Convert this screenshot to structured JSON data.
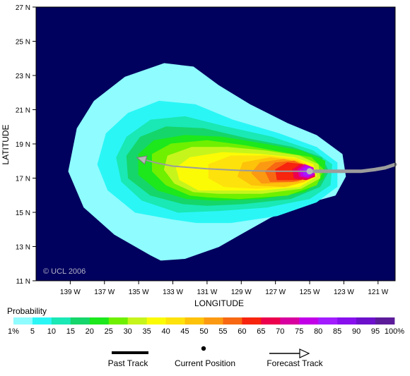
{
  "chart_data": {
    "type": "heatmap",
    "title": "",
    "xlabel": "LONGITUDE",
    "ylabel": "LATITUDE",
    "xlim": [
      -141,
      -120
    ],
    "ylim": [
      11,
      27
    ],
    "x_ticks": [
      -139,
      -137,
      -135,
      -133,
      -131,
      -129,
      -127,
      -125,
      -123,
      -121
    ],
    "x_tick_labels": [
      "139 W",
      "137 W",
      "135 W",
      "133 W",
      "131 W",
      "129 W",
      "127 W",
      "125 W",
      "123 W",
      "121 W"
    ],
    "y_ticks": [
      11,
      13,
      15,
      17,
      19,
      21,
      23,
      25,
      27
    ],
    "y_tick_labels": [
      "11 N",
      "13 N",
      "15 N",
      "17 N",
      "19 N",
      "21 N",
      "23 N",
      "25 N",
      "27 N"
    ],
    "background_color": "#00005e",
    "watermark": "© UCL 2006",
    "probability_contours": [
      {
        "level": 1,
        "color": "#8ffcff",
        "polygon": [
          [
            -134.3,
            12.5
          ],
          [
            -136.4,
            13.7
          ],
          [
            -138.2,
            15.3
          ],
          [
            -139.1,
            17.4
          ],
          [
            -138.6,
            19.9
          ],
          [
            -137.6,
            21.5
          ],
          [
            -135.8,
            22.9
          ],
          [
            -133.5,
            23.7
          ],
          [
            -131.8,
            23.5
          ],
          [
            -130.3,
            22.4
          ],
          [
            -128.5,
            21.3
          ],
          [
            -126.3,
            20.2
          ],
          [
            -124.6,
            19.5
          ],
          [
            -123.1,
            18.4
          ],
          [
            -122.9,
            17.1
          ],
          [
            -123.5,
            16.0
          ],
          [
            -125.3,
            15.5
          ],
          [
            -127.3,
            14.7
          ],
          [
            -128.9,
            13.8
          ],
          [
            -130.3,
            13.0
          ],
          [
            -132.3,
            12.3
          ],
          [
            -133.7,
            12.2
          ]
        ]
      },
      {
        "level": 5,
        "color": "#2bf6f6",
        "polygon": [
          [
            -133.0,
            14.6
          ],
          [
            -135.2,
            15.0
          ],
          [
            -136.8,
            16.3
          ],
          [
            -137.4,
            17.8
          ],
          [
            -136.9,
            19.6
          ],
          [
            -135.6,
            20.8
          ],
          [
            -133.8,
            21.5
          ],
          [
            -131.7,
            21.3
          ],
          [
            -129.5,
            20.4
          ],
          [
            -126.8,
            19.6
          ],
          [
            -124.6,
            18.8
          ],
          [
            -123.4,
            17.9
          ],
          [
            -123.4,
            16.5
          ],
          [
            -124.6,
            15.6
          ],
          [
            -126.9,
            14.8
          ],
          [
            -129.6,
            14.4
          ],
          [
            -131.6,
            14.4
          ]
        ]
      },
      {
        "level": 10,
        "color": "#1ae8b5",
        "polygon": [
          [
            -132.7,
            15.0
          ],
          [
            -134.8,
            15.7
          ],
          [
            -136.0,
            16.8
          ],
          [
            -136.3,
            18.2
          ],
          [
            -135.7,
            19.4
          ],
          [
            -134.3,
            20.4
          ],
          [
            -132.3,
            20.6
          ],
          [
            -129.9,
            20.0
          ],
          [
            -127.2,
            19.4
          ],
          [
            -124.8,
            18.6
          ],
          [
            -123.7,
            17.8
          ],
          [
            -123.8,
            16.6
          ],
          [
            -125.0,
            15.8
          ],
          [
            -127.5,
            15.3
          ],
          [
            -130.3,
            15.1
          ]
        ]
      },
      {
        "level": 15,
        "color": "#15d66a",
        "polygon": [
          [
            -132.4,
            15.5
          ],
          [
            -134.3,
            16.0
          ],
          [
            -135.6,
            17.0
          ],
          [
            -135.7,
            18.3
          ],
          [
            -134.9,
            19.4
          ],
          [
            -133.4,
            20.0
          ],
          [
            -131.2,
            19.9
          ],
          [
            -128.6,
            19.3
          ],
          [
            -126.0,
            18.8
          ],
          [
            -124.3,
            18.2
          ],
          [
            -123.9,
            17.4
          ],
          [
            -124.4,
            16.5
          ],
          [
            -126.1,
            15.8
          ],
          [
            -128.9,
            15.5
          ],
          [
            -131.0,
            15.4
          ]
        ]
      },
      {
        "level": 20,
        "color": "#1ce81c",
        "polygon": [
          [
            -132.2,
            15.8
          ],
          [
            -133.9,
            16.3
          ],
          [
            -135.0,
            17.2
          ],
          [
            -135.0,
            18.4
          ],
          [
            -134.1,
            19.2
          ],
          [
            -132.3,
            19.5
          ],
          [
            -130.1,
            19.4
          ],
          [
            -127.7,
            19.0
          ],
          [
            -125.5,
            18.6
          ],
          [
            -124.1,
            18.0
          ],
          [
            -124.2,
            17.0
          ],
          [
            -125.3,
            16.2
          ],
          [
            -127.8,
            15.8
          ],
          [
            -130.5,
            15.7
          ]
        ]
      },
      {
        "level": 25,
        "color": "#6ef000",
        "polygon": [
          [
            -132.0,
            16.0
          ],
          [
            -133.4,
            16.6
          ],
          [
            -134.2,
            17.4
          ],
          [
            -134.2,
            18.4
          ],
          [
            -133.1,
            19.0
          ],
          [
            -131.0,
            19.2
          ],
          [
            -128.8,
            18.9
          ],
          [
            -126.6,
            18.5
          ],
          [
            -124.9,
            18.2
          ],
          [
            -124.2,
            17.5
          ],
          [
            -124.6,
            16.6
          ],
          [
            -126.3,
            16.0
          ],
          [
            -129.1,
            15.8
          ],
          [
            -131.0,
            15.9
          ]
        ]
      },
      {
        "level": 30,
        "color": "#c6f51c",
        "polygon": [
          [
            -131.8,
            16.2
          ],
          [
            -132.9,
            16.7
          ],
          [
            -133.5,
            17.5
          ],
          [
            -133.3,
            18.3
          ],
          [
            -131.9,
            18.8
          ],
          [
            -129.8,
            18.8
          ],
          [
            -127.6,
            18.6
          ],
          [
            -125.6,
            18.3
          ],
          [
            -124.5,
            17.8
          ],
          [
            -124.4,
            17.0
          ],
          [
            -125.5,
            16.4
          ],
          [
            -127.8,
            16.1
          ],
          [
            -130.3,
            16.1
          ]
        ]
      },
      {
        "level": 35,
        "color": "#fbfb05",
        "polygon": [
          [
            -131.5,
            16.3
          ],
          [
            -132.6,
            16.9
          ],
          [
            -132.8,
            17.6
          ],
          [
            -132.0,
            18.2
          ],
          [
            -130.1,
            18.5
          ],
          [
            -127.9,
            18.4
          ],
          [
            -125.9,
            18.2
          ],
          [
            -124.8,
            17.8
          ],
          [
            -124.6,
            17.1
          ],
          [
            -125.6,
            16.5
          ],
          [
            -127.8,
            16.3
          ],
          [
            -130.0,
            16.3
          ]
        ]
      },
      {
        "level": 40,
        "color": "#fee20c",
        "polygon": [
          [
            -130.0,
            16.5
          ],
          [
            -130.9,
            17.0
          ],
          [
            -130.9,
            17.8
          ],
          [
            -129.6,
            18.3
          ],
          [
            -127.4,
            18.3
          ],
          [
            -125.7,
            18.1
          ],
          [
            -124.8,
            17.6
          ],
          [
            -125.0,
            16.9
          ],
          [
            -126.3,
            16.5
          ],
          [
            -128.1,
            16.4
          ]
        ]
      },
      {
        "level": 45,
        "color": "#fdc20a",
        "polygon": [
          [
            -128.4,
            16.6
          ],
          [
            -129.2,
            17.1
          ],
          [
            -128.9,
            17.9
          ],
          [
            -127.3,
            18.2
          ],
          [
            -125.7,
            18.0
          ],
          [
            -124.9,
            17.5
          ],
          [
            -125.3,
            16.8
          ],
          [
            -126.5,
            16.5
          ]
        ]
      },
      {
        "level": 50,
        "color": "#fb9a12",
        "polygon": [
          [
            -127.8,
            16.7
          ],
          [
            -128.4,
            17.3
          ],
          [
            -127.9,
            17.9
          ],
          [
            -126.5,
            18.1
          ],
          [
            -125.3,
            17.8
          ],
          [
            -125.0,
            17.2
          ],
          [
            -125.7,
            16.8
          ]
        ]
      },
      {
        "level": 55,
        "color": "#f86812",
        "polygon": [
          [
            -127.3,
            16.8
          ],
          [
            -127.6,
            17.4
          ],
          [
            -127.0,
            17.9
          ],
          [
            -125.9,
            18.0
          ],
          [
            -125.1,
            17.6
          ],
          [
            -125.2,
            17.0
          ],
          [
            -126.0,
            16.8
          ]
        ]
      },
      {
        "level": 60,
        "color": "#f7240e",
        "polygon": [
          [
            -126.9,
            16.9
          ],
          [
            -127.0,
            17.5
          ],
          [
            -126.3,
            17.9
          ],
          [
            -125.4,
            17.8
          ],
          [
            -125.0,
            17.3
          ],
          [
            -125.5,
            16.9
          ]
        ]
      },
      {
        "level": 65,
        "color": "#ec004d",
        "polygon": [
          [
            -125.9,
            17.0
          ],
          [
            -126.0,
            17.5
          ],
          [
            -125.5,
            17.8
          ],
          [
            -124.8,
            17.6
          ],
          [
            -124.7,
            17.1
          ],
          [
            -125.2,
            16.9
          ]
        ]
      },
      {
        "level": 70,
        "color": "#d8009e",
        "polygon": [
          [
            -125.6,
            17.1
          ],
          [
            -125.7,
            17.5
          ],
          [
            -125.3,
            17.8
          ],
          [
            -124.8,
            17.6
          ],
          [
            -124.7,
            17.2
          ],
          [
            -125.1,
            17.0
          ]
        ]
      },
      {
        "level": 75,
        "color": "#c200e8",
        "polygon": [
          [
            -125.5,
            17.15
          ],
          [
            -125.55,
            17.5
          ],
          [
            -125.2,
            17.75
          ],
          [
            -124.8,
            17.6
          ],
          [
            -124.75,
            17.25
          ],
          [
            -125.1,
            17.05
          ]
        ]
      },
      {
        "level": 80,
        "color": "#a21cff",
        "polygon": [
          [
            -125.35,
            17.2
          ],
          [
            -125.35,
            17.55
          ],
          [
            -125.05,
            17.65
          ],
          [
            -124.85,
            17.45
          ],
          [
            -124.85,
            17.25
          ],
          [
            -125.1,
            17.15
          ]
        ]
      }
    ],
    "past_track": [
      [
        -120.0,
        17.8
      ],
      [
        -120.6,
        17.6
      ],
      [
        -121.2,
        17.5
      ],
      [
        -122.0,
        17.4
      ],
      [
        -123.0,
        17.4
      ],
      [
        -124.0,
        17.4
      ],
      [
        -125.0,
        17.4
      ]
    ],
    "current_position": [
      -125.0,
      17.4
    ],
    "forecast_track": [
      [
        -125.0,
        17.4
      ],
      [
        -127.0,
        17.4
      ],
      [
        -129.0,
        17.45
      ],
      [
        -131.0,
        17.55
      ],
      [
        -133.0,
        17.7
      ],
      [
        -134.0,
        17.9
      ],
      [
        -135.1,
        18.2
      ]
    ],
    "legend": {
      "title": "Probability",
      "levels": [
        "1%",
        "5",
        "10",
        "15",
        "20",
        "25",
        "30",
        "35",
        "40",
        "45",
        "50",
        "55",
        "60",
        "65",
        "70",
        "75",
        "80",
        "85",
        "90",
        "95",
        "100%"
      ],
      "colors": [
        "#8ffcff",
        "#2bf6f6",
        "#1ae8b5",
        "#15d66a",
        "#1ce81c",
        "#6ef000",
        "#c6f51c",
        "#fbfb05",
        "#fee20c",
        "#fdc20a",
        "#fb9a12",
        "#f86812",
        "#f7240e",
        "#ec004d",
        "#d8009e",
        "#c200e8",
        "#a21cff",
        "#8810ee",
        "#6d10cc",
        "#5c1c9a"
      ],
      "track_keys": [
        "Past Track",
        "Current Position",
        "Forecast Track"
      ]
    },
    "track_color": "#9c9c9c",
    "grid": false
  }
}
